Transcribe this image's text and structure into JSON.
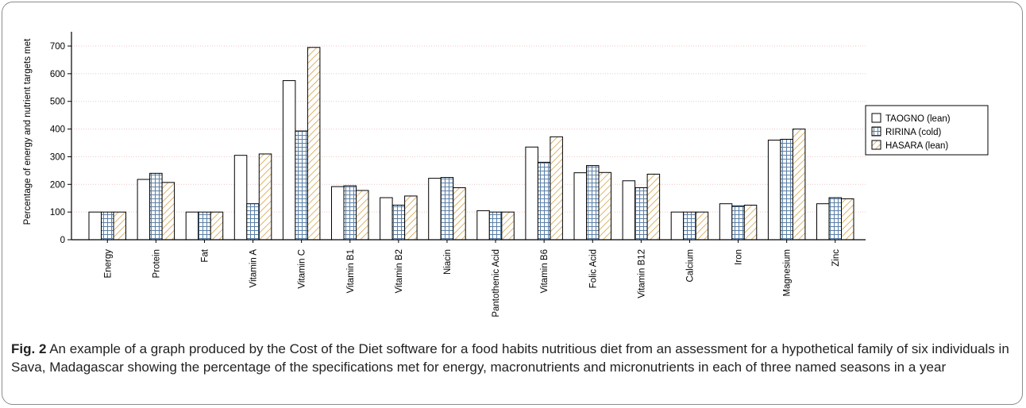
{
  "chart_data": {
    "type": "bar",
    "ylabel": "Percentage of energy and nutrient targets met",
    "ylim": [
      0,
      750
    ],
    "yticks": [
      0,
      100,
      200,
      300,
      400,
      500,
      600,
      700
    ],
    "grid": "horizontal dotted",
    "legend_placement": "right",
    "categories": [
      "Energy",
      "Protein",
      "Fat",
      "Vitamin A",
      "Vitamin C",
      "Vitamin B1",
      "Vitamin B2",
      "Niacin",
      "Pantothenic Acid",
      "Vitamin B6",
      "Folic Acid",
      "Vitamin B12",
      "Calcium",
      "Iron",
      "Magnesium",
      "Zinc"
    ],
    "series": [
      {
        "name": "TAOGNO (lean)",
        "pattern": "plain",
        "values": [
          100,
          218,
          100,
          305,
          575,
          192,
          152,
          222,
          105,
          335,
          242,
          213,
          100,
          130,
          360,
          130
        ]
      },
      {
        "name": "RIRINA (cold)",
        "pattern": "grid",
        "values": [
          100,
          240,
          100,
          130,
          393,
          195,
          125,
          225,
          100,
          280,
          268,
          188,
          100,
          122,
          363,
          152
        ]
      },
      {
        "name": "HASARA (lean)",
        "pattern": "hatch",
        "values": [
          100,
          207,
          100,
          310,
          695,
          178,
          158,
          188,
          100,
          372,
          243,
          237,
          100,
          125,
          400,
          148
        ]
      }
    ]
  },
  "colors": {
    "bar_outline": "#000000",
    "grid_pattern_line": "#5b7fa6",
    "hatch_pattern_line": "#d4a24a",
    "gridline": "#f2c4c4",
    "axis": "#000000"
  },
  "caption": {
    "label": "Fig. 2",
    "text": " An example of a graph produced by the Cost of the Diet software for a food habits nutritious diet from an assessment for a hypothetical family of six individuals in Sava, Madagascar showing the percentage of the specifications met for energy, macronutrients and micronutrients in each of three named seasons in a year"
  }
}
